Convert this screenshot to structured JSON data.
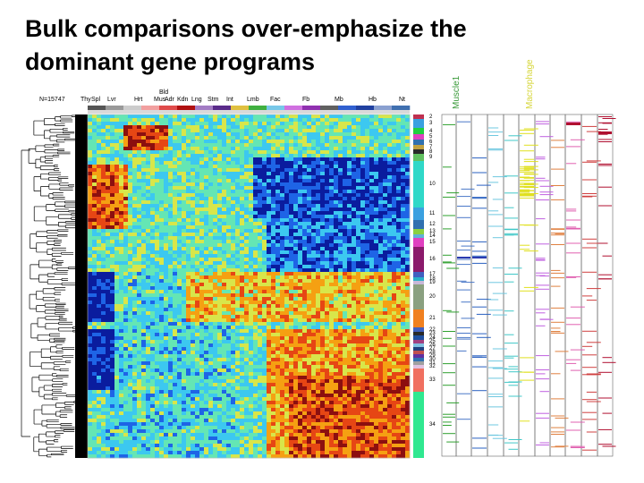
{
  "slide": {
    "title_line1": "Bulk comparisons over-emphasize the",
    "title_line2": "dominant gene programs"
  },
  "heatmap": {
    "n_label": "N=15747",
    "tissue_labels": [
      "Thy",
      "Spl",
      "Lvr",
      "Hrt",
      "Bld",
      "Mus",
      "Adr",
      "Kdn",
      "Lng",
      "Stm",
      "Int",
      "Lmb",
      "Fac",
      "Fb",
      "Mb",
      "Hb",
      "Nt"
    ],
    "colormap": [
      "#0a1c9e",
      "#1e64e6",
      "#3cc8f0",
      "#64e6b4",
      "#d8e64a",
      "#f5a012",
      "#e64614",
      "#8c0f0f"
    ],
    "clusters": [
      "2",
      "3",
      "4",
      "5",
      "6",
      "7",
      "8",
      "9",
      "10",
      "11",
      "12",
      "13",
      "14",
      "15",
      "16",
      "17",
      "18",
      "19",
      "20",
      "21",
      "22",
      "23",
      "24",
      "25",
      "26",
      "27",
      "28",
      "29",
      "30",
      "31",
      "32",
      "33",
      "34"
    ]
  },
  "tracks": {
    "muscle_label": "Muscle1",
    "macrophage_label": "Macrophage",
    "muscle_color": "#3a9a3a",
    "macrophage_color": "#d6d63a"
  }
}
